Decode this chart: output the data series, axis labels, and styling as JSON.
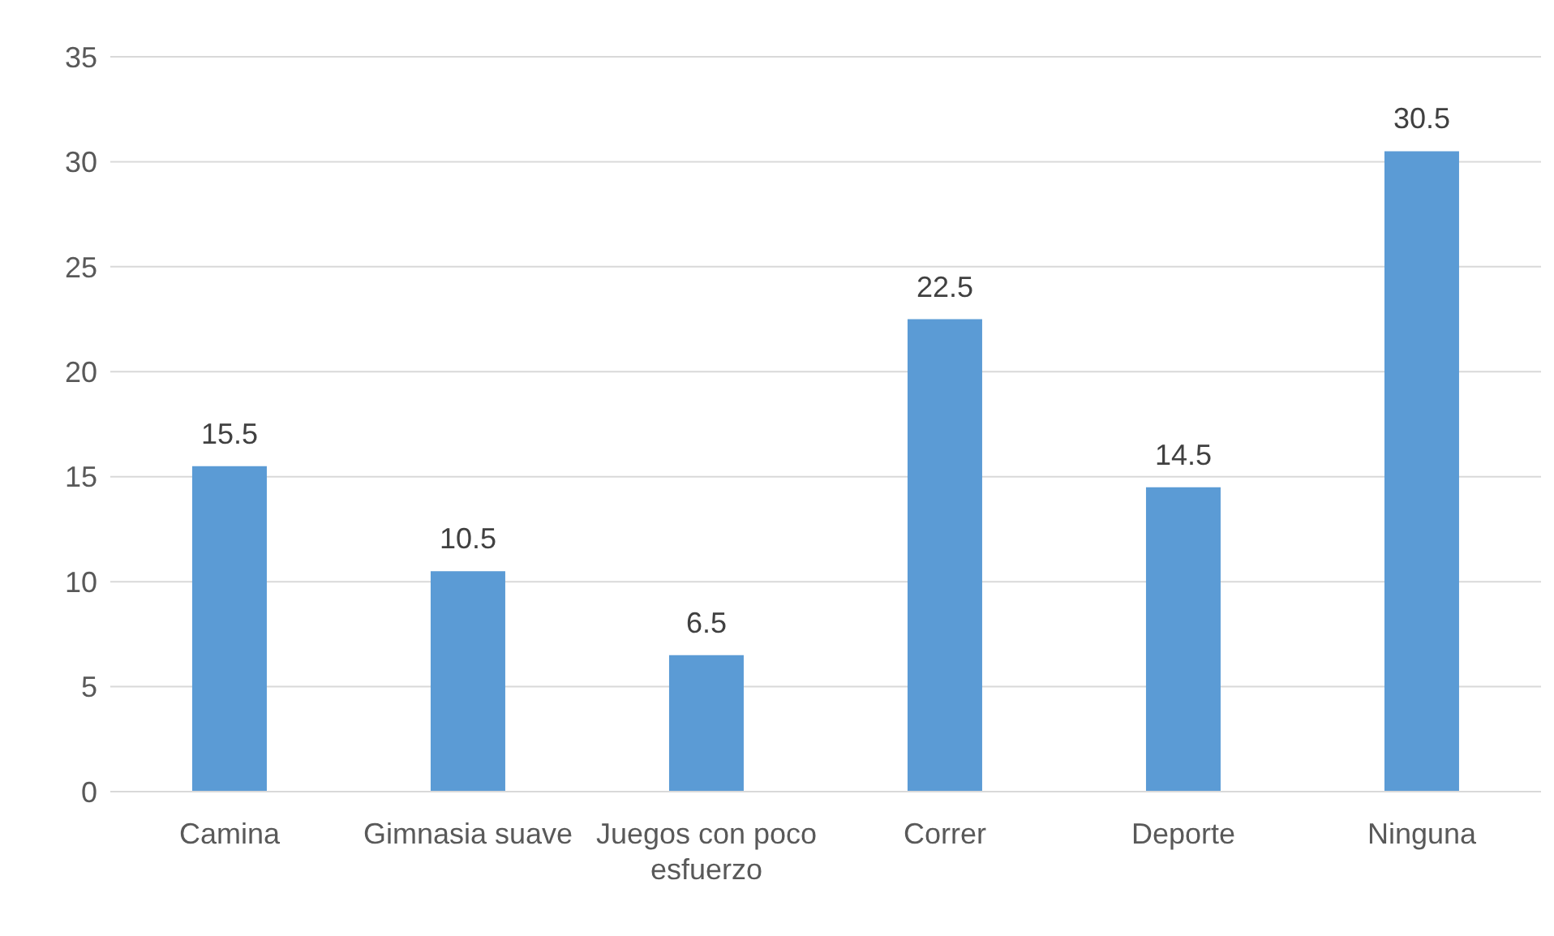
{
  "chart_data": {
    "type": "bar",
    "categories": [
      "Camina",
      "Gimnasia suave",
      "Juegos con poco esfuerzo",
      "Correr",
      "Deporte",
      "Ninguna"
    ],
    "values": [
      15.5,
      10.5,
      6.5,
      22.5,
      14.5,
      30.5
    ],
    "color": "#5b9bd5",
    "ylim": [
      0,
      35
    ],
    "yticks": [
      0,
      5,
      10,
      15,
      20,
      25,
      30,
      35
    ],
    "grid": "y",
    "data_labels": true,
    "legend": false
  }
}
